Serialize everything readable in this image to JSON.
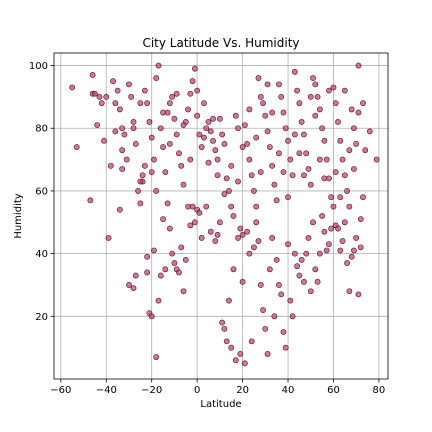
{
  "chart_data": {
    "type": "scatter",
    "title": "City Latitude Vs. Humidity",
    "xlabel": "Latitude",
    "ylabel": "Humidity",
    "xlim": [
      -63,
      84
    ],
    "ylim": [
      0,
      104
    ],
    "xticks": [
      -60,
      -40,
      -20,
      0,
      20,
      40,
      60,
      80
    ],
    "yticks": [
      20,
      40,
      60,
      80,
      100
    ],
    "grid": true,
    "marker_color": "#c0426a",
    "edge_color": "#4a1020",
    "points": [
      [
        -55,
        93
      ],
      [
        -53,
        74
      ],
      [
        -46,
        97
      ],
      [
        -46,
        91
      ],
      [
        -45,
        91
      ],
      [
        -43,
        90
      ],
      [
        -42,
        88
      ],
      [
        -41,
        76
      ],
      [
        -39,
        45
      ],
      [
        -38,
        68
      ],
      [
        -37,
        95
      ],
      [
        -36,
        88
      ],
      [
        -35,
        92
      ],
      [
        -34,
        86
      ],
      [
        -33,
        80
      ],
      [
        -32,
        78
      ],
      [
        -31,
        70
      ],
      [
        -30,
        94
      ],
      [
        -29,
        90
      ],
      [
        -28,
        82
      ],
      [
        -27,
        75
      ],
      [
        -26,
        60
      ],
      [
        -25,
        56
      ],
      [
        -24,
        63
      ],
      [
        -23,
        92
      ],
      [
        -22,
        88
      ],
      [
        -21,
        82
      ],
      [
        -20,
        77
      ],
      [
        -19,
        70
      ],
      [
        -18,
        96
      ],
      [
        -17,
        100
      ],
      [
        -16,
        80
      ],
      [
        -15,
        74
      ],
      [
        -14,
        66
      ],
      [
        -13,
        85
      ],
      [
        -12,
        88
      ],
      [
        -11,
        90
      ],
      [
        -10,
        83
      ],
      [
        -9,
        78
      ],
      [
        -8,
        72
      ],
      [
        -7,
        68
      ],
      [
        -6,
        62
      ],
      [
        -5,
        82
      ],
      [
        -4,
        86
      ],
      [
        -3,
        91
      ],
      [
        -2,
        95
      ],
      [
        -1,
        99
      ],
      [
        0,
        84
      ],
      [
        1,
        78
      ],
      [
        2,
        74
      ],
      [
        3,
        88
      ],
      [
        4,
        80
      ],
      [
        5,
        82
      ],
      [
        6,
        79
      ],
      [
        7,
        76
      ],
      [
        8,
        73
      ],
      [
        9,
        70
      ],
      [
        10,
        83
      ],
      [
        11,
        78
      ],
      [
        12,
        75
      ],
      [
        13,
        64
      ],
      [
        14,
        60
      ],
      [
        15,
        55
      ],
      [
        16,
        52
      ],
      [
        17,
        84
      ],
      [
        18,
        63
      ],
      [
        19,
        48
      ],
      [
        20,
        46
      ],
      [
        21,
        81
      ],
      [
        22,
        75
      ],
      [
        23,
        70
      ],
      [
        24,
        65
      ],
      [
        25,
        60
      ],
      [
        26,
        55
      ],
      [
        27,
        96
      ],
      [
        28,
        90
      ],
      [
        29,
        88
      ],
      [
        30,
        84
      ],
      [
        31,
        79
      ],
      [
        32,
        74
      ],
      [
        33,
        68
      ],
      [
        34,
        62
      ],
      [
        35,
        57
      ],
      [
        36,
        94
      ],
      [
        37,
        90
      ],
      [
        38,
        85
      ],
      [
        39,
        80
      ],
      [
        40,
        76
      ],
      [
        41,
        70
      ],
      [
        42,
        65
      ],
      [
        43,
        98
      ],
      [
        44,
        92
      ],
      [
        45,
        88
      ],
      [
        46,
        82
      ],
      [
        47,
        78
      ],
      [
        48,
        72
      ],
      [
        49,
        67
      ],
      [
        50,
        62
      ],
      [
        51,
        96
      ],
      [
        52,
        94
      ],
      [
        53,
        90
      ],
      [
        54,
        86
      ],
      [
        55,
        80
      ],
      [
        56,
        76
      ],
      [
        57,
        70
      ],
      [
        58,
        64
      ],
      [
        59,
        58
      ],
      [
        60,
        93
      ],
      [
        61,
        88
      ],
      [
        62,
        82
      ],
      [
        63,
        76
      ],
      [
        64,
        70
      ],
      [
        65,
        65
      ],
      [
        66,
        60
      ],
      [
        67,
        55
      ],
      [
        68,
        86
      ],
      [
        69,
        80
      ],
      [
        70,
        75
      ],
      [
        71,
        100
      ],
      [
        72,
        42
      ],
      [
        73,
        88
      ],
      [
        79,
        70
      ],
      [
        -47,
        57
      ],
      [
        -44,
        81
      ],
      [
        -40,
        90
      ],
      [
        -34,
        54
      ],
      [
        -33,
        73
      ],
      [
        -30,
        30
      ],
      [
        -28,
        29
      ],
      [
        -27,
        33
      ],
      [
        -25,
        63
      ],
      [
        -24,
        65
      ],
      [
        -22,
        34
      ],
      [
        -22,
        39
      ],
      [
        -21,
        21
      ],
      [
        -20,
        20
      ],
      [
        -19,
        41
      ],
      [
        -18,
        7
      ],
      [
        -17,
        25
      ],
      [
        -16,
        33
      ],
      [
        -15,
        51
      ],
      [
        -14,
        35
      ],
      [
        -13,
        56
      ],
      [
        -12,
        48
      ],
      [
        -11,
        40
      ],
      [
        -10,
        37
      ],
      [
        -9,
        35
      ],
      [
        -8,
        34
      ],
      [
        -7,
        42
      ],
      [
        -6,
        28
      ],
      [
        -5,
        38
      ],
      [
        -4,
        55
      ],
      [
        -3,
        49
      ],
      [
        -2,
        55
      ],
      [
        -1,
        50
      ],
      [
        0,
        54
      ],
      [
        1,
        53
      ],
      [
        2,
        45
      ],
      [
        4,
        55
      ],
      [
        6,
        47
      ],
      [
        8,
        44
      ],
      [
        9,
        46
      ],
      [
        10,
        50
      ],
      [
        11,
        18
      ],
      [
        12,
        16
      ],
      [
        13,
        12
      ],
      [
        14,
        25
      ],
      [
        15,
        10
      ],
      [
        16,
        35
      ],
      [
        17,
        6
      ],
      [
        18,
        45
      ],
      [
        19,
        8
      ],
      [
        20,
        31
      ],
      [
        21,
        5
      ],
      [
        22,
        47
      ],
      [
        23,
        40
      ],
      [
        24,
        12
      ],
      [
        25,
        42
      ],
      [
        26,
        50
      ],
      [
        27,
        44
      ],
      [
        28,
        30
      ],
      [
        29,
        22
      ],
      [
        30,
        16
      ],
      [
        31,
        8
      ],
      [
        32,
        35
      ],
      [
        33,
        45
      ],
      [
        34,
        20
      ],
      [
        35,
        38
      ],
      [
        36,
        30
      ],
      [
        37,
        27
      ],
      [
        38,
        15
      ],
      [
        39,
        10
      ],
      [
        40,
        43
      ],
      [
        41,
        25
      ],
      [
        42,
        20
      ],
      [
        43,
        40
      ],
      [
        44,
        36
      ],
      [
        45,
        33
      ],
      [
        46,
        38
      ],
      [
        47,
        31
      ],
      [
        48,
        40
      ],
      [
        49,
        45
      ],
      [
        50,
        28
      ],
      [
        51,
        50
      ],
      [
        52,
        35
      ],
      [
        53,
        31
      ],
      [
        54,
        40
      ],
      [
        55,
        52
      ],
      [
        56,
        47
      ],
      [
        57,
        41
      ],
      [
        58,
        43
      ],
      [
        59,
        48
      ],
      [
        60,
        55
      ],
      [
        61,
        49
      ],
      [
        62,
        48
      ],
      [
        63,
        41
      ],
      [
        64,
        44
      ],
      [
        65,
        50
      ],
      [
        66,
        37
      ],
      [
        67,
        28
      ],
      [
        68,
        39
      ],
      [
        69,
        41
      ],
      [
        70,
        45
      ],
      [
        71,
        27
      ],
      [
        72,
        51
      ],
      [
        73,
        58
      ],
      [
        -36,
        79
      ],
      [
        -33,
        67
      ],
      [
        -28,
        80
      ],
      [
        -25,
        88
      ],
      [
        -23,
        68
      ],
      [
        -20,
        66
      ],
      [
        -18,
        60
      ],
      [
        -15,
        85
      ],
      [
        -12,
        75
      ],
      [
        -9,
        91
      ],
      [
        -6,
        81
      ],
      [
        -3,
        70
      ],
      [
        0,
        92
      ],
      [
        3,
        77
      ],
      [
        5,
        69
      ],
      [
        7,
        83
      ],
      [
        9,
        65
      ],
      [
        12,
        59
      ],
      [
        15,
        68
      ],
      [
        18,
        80
      ],
      [
        20,
        74
      ],
      [
        23,
        86
      ],
      [
        26,
        77
      ],
      [
        28,
        66
      ],
      [
        31,
        94
      ],
      [
        33,
        85
      ],
      [
        36,
        72
      ],
      [
        38,
        66
      ],
      [
        40,
        58
      ],
      [
        43,
        78
      ],
      [
        45,
        72
      ],
      [
        47,
        65
      ],
      [
        50,
        90
      ],
      [
        52,
        84
      ],
      [
        54,
        70
      ],
      [
        56,
        64
      ],
      [
        58,
        92
      ],
      [
        61,
        66
      ],
      [
        63,
        58
      ],
      [
        65,
        92
      ],
      [
        67,
        73
      ],
      [
        69,
        67
      ],
      [
        71,
        85
      ],
      [
        74,
        73
      ],
      [
        76,
        79
      ]
    ]
  }
}
